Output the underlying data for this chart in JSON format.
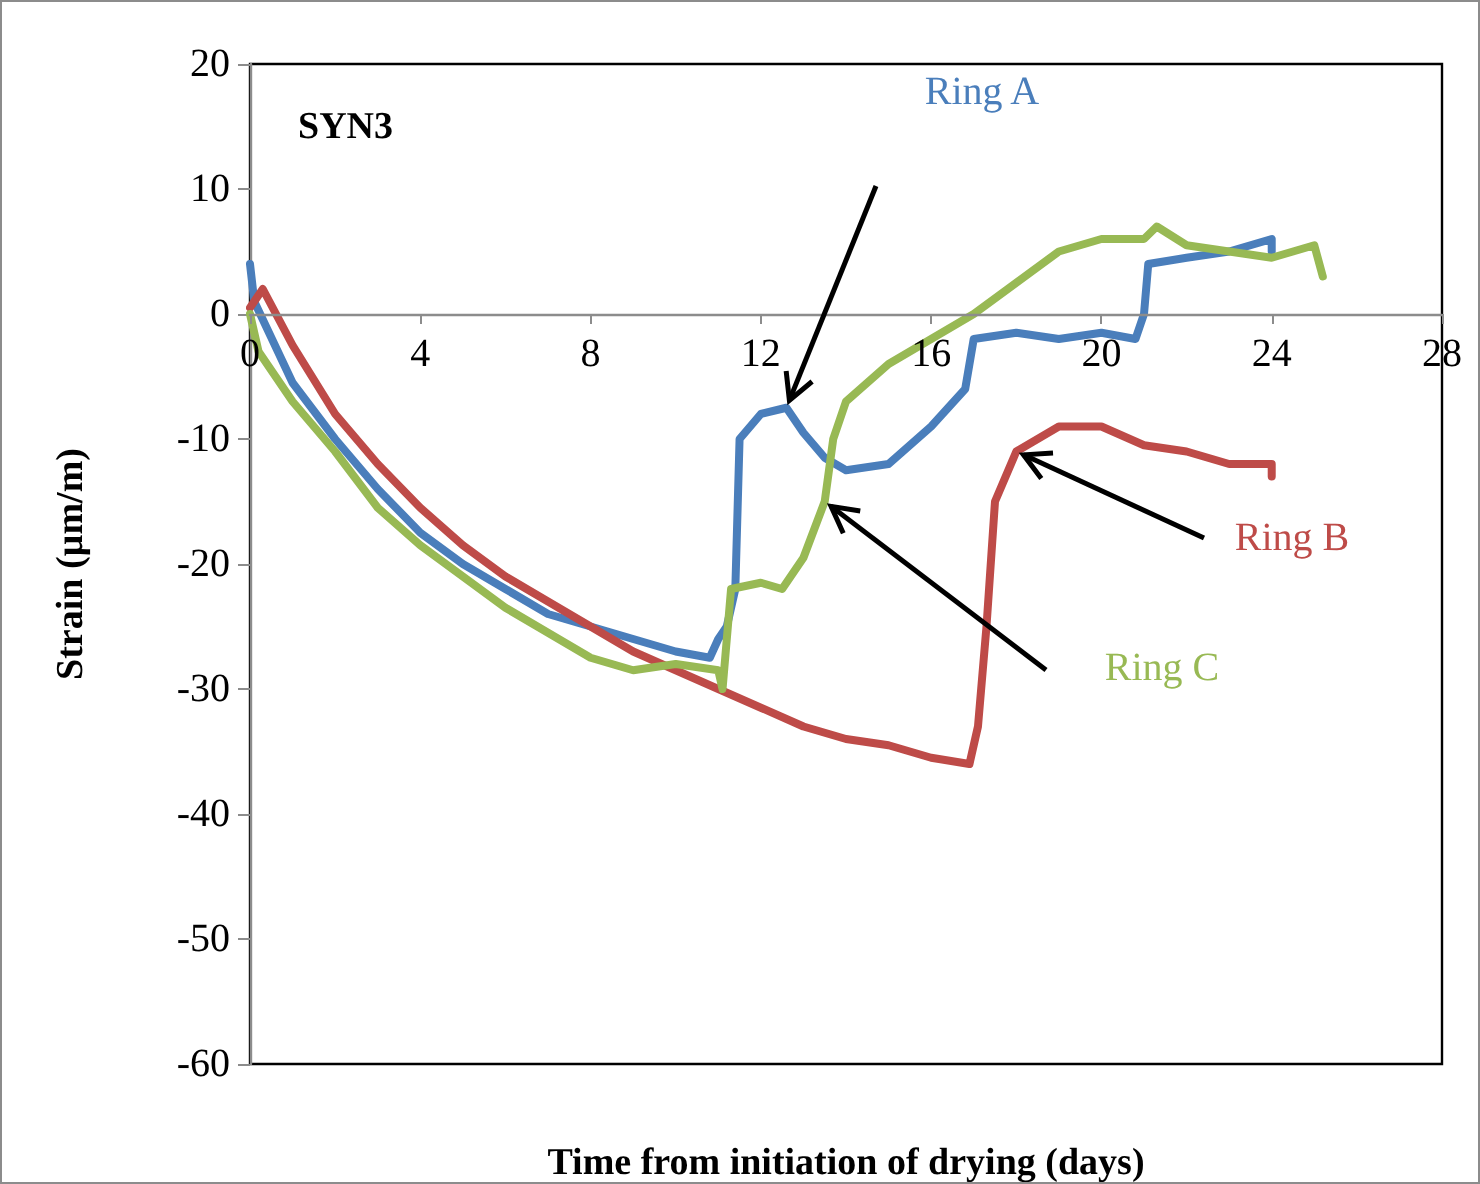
{
  "chart_data": {
    "type": "line",
    "title": "SYN3",
    "xlabel": "Time from initiation of drying (days)",
    "ylabel": "Strain (µm/m)",
    "xlim": [
      0,
      28
    ],
    "xticks": [
      0,
      4,
      8,
      12,
      16,
      20,
      24,
      28
    ],
    "ylim": [
      -60,
      20
    ],
    "yticks": [
      -60,
      -50,
      -40,
      -30,
      -20,
      -10,
      0,
      10,
      20
    ],
    "grid": false,
    "legend": false,
    "marker": "none",
    "line_style": "solid",
    "series": [
      {
        "name": "Ring A",
        "color": "#4a7ebb",
        "x": [
          0,
          0.1,
          1,
          2,
          3,
          4,
          5,
          6,
          7,
          8,
          9,
          10,
          10.8,
          11,
          11.2,
          11.4,
          11.5,
          12,
          12.6,
          13,
          13.5,
          14,
          15,
          16,
          16.8,
          17,
          18,
          19,
          20,
          20.8,
          21,
          21.1,
          22,
          23,
          24,
          24
        ],
        "values": [
          4,
          1,
          -5.5,
          -10,
          -14,
          -17.5,
          -20,
          -22,
          -24,
          -25,
          -26,
          -27,
          -27.5,
          -26,
          -25,
          -22,
          -10,
          -8,
          -7.5,
          -9.5,
          -11.5,
          -12.5,
          -12,
          -9,
          -6,
          -2,
          -1.5,
          -2,
          -1.5,
          -2,
          0,
          4,
          4.5,
          5,
          6,
          5
        ]
      },
      {
        "name": "Ring B",
        "color": "#be4b48",
        "x": [
          0,
          0.3,
          1,
          2,
          3,
          4,
          5,
          6,
          7,
          8,
          9,
          10,
          11,
          12,
          13,
          14,
          15,
          16,
          16.9,
          17.1,
          17.3,
          17.5,
          18,
          19,
          20,
          21,
          22,
          23,
          24,
          24
        ],
        "values": [
          0.5,
          2,
          -2.5,
          -8,
          -12,
          -15.5,
          -18.5,
          -21,
          -23,
          -25,
          -27,
          -28.5,
          -30,
          -31.5,
          -33,
          -34,
          -34.5,
          -35.5,
          -36,
          -33,
          -25,
          -15,
          -11,
          -9,
          -9,
          -10.5,
          -11,
          -12,
          -12,
          -13
        ]
      },
      {
        "name": "Ring C",
        "color": "#98b954",
        "x": [
          0,
          0.2,
          1,
          2,
          3,
          4,
          5,
          6,
          7,
          8,
          9,
          10,
          11,
          11.1,
          11.3,
          12,
          12.5,
          13,
          13.5,
          13.7,
          14,
          15,
          16,
          17,
          18,
          19,
          20,
          21,
          21.3,
          22,
          23,
          24,
          24.5,
          25,
          25.2
        ],
        "values": [
          0,
          -3,
          -7,
          -11,
          -15.5,
          -18.5,
          -21,
          -23.5,
          -25.5,
          -27.5,
          -28.5,
          -28,
          -28.5,
          -30,
          -22,
          -21.5,
          -22,
          -19.5,
          -15,
          -10,
          -7,
          -4,
          -2,
          0,
          2.5,
          5,
          6,
          6,
          7,
          5.5,
          5,
          4.5,
          5,
          5.5,
          3
        ]
      }
    ]
  }
}
